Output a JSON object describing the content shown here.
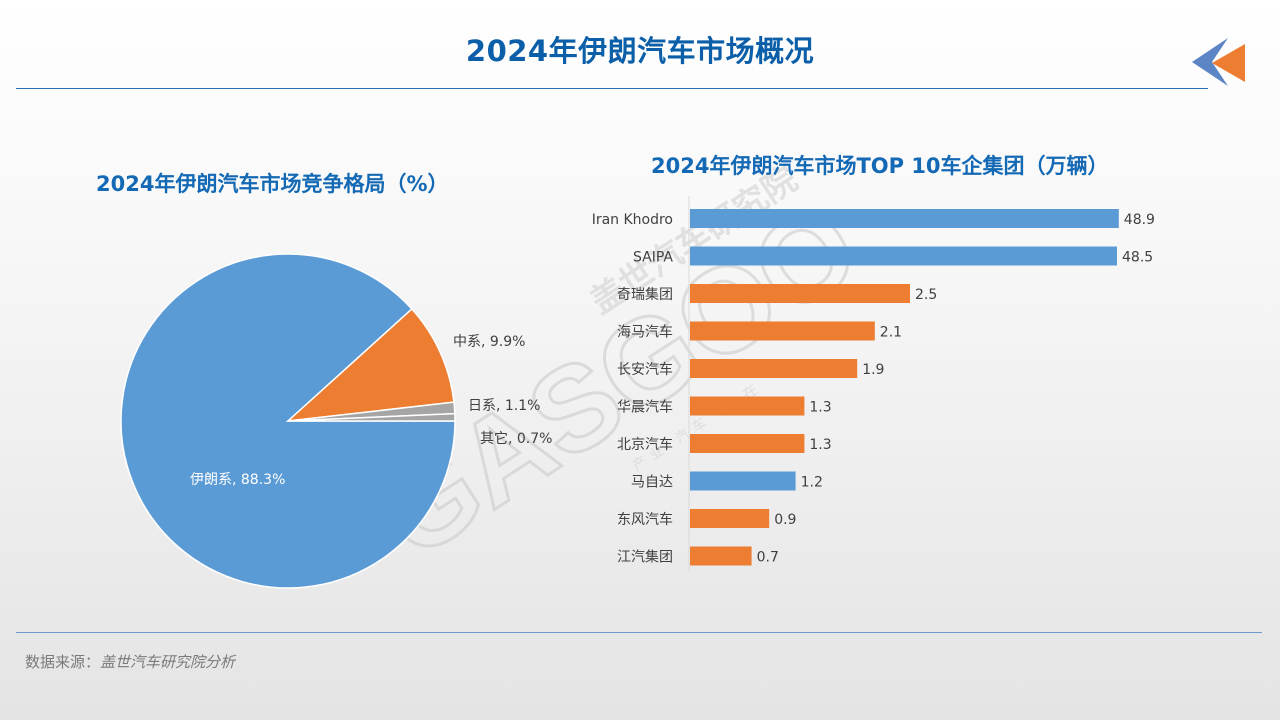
{
  "page": {
    "title": "2024年伊朗汽车市场概况",
    "source_label": "数据来源：",
    "source_value": "盖世汽车研究院分析"
  },
  "colors": {
    "title_blue": "#0b5ea8",
    "blue": "#5b9bd5",
    "orange": "#ed7d31",
    "gray": "#a5a5a5",
    "watermark": "#c8c8c8"
  },
  "watermark": {
    "brand": "盖世汽车研究院",
    "logo": "GASGOO",
    "slogan": "产业 汽车 量 在"
  },
  "chart_data": [
    {
      "type": "pie",
      "title": "2024年伊朗汽车市场竞争格局（%）",
      "slices": [
        {
          "name": "伊朗系",
          "value": 88.3,
          "label": "伊朗系, 88.3%",
          "color": "#5b9bd5"
        },
        {
          "name": "中系",
          "value": 9.9,
          "label": "中系, 9.9%",
          "color": "#ed7d31"
        },
        {
          "name": "日系",
          "value": 1.1,
          "label": "日系, 1.1%",
          "color": "#a5a5a5"
        },
        {
          "name": "其它",
          "value": 0.7,
          "label": "其它, 0.7%",
          "color": "#a5a5a5"
        }
      ]
    },
    {
      "type": "bar",
      "orientation": "horizontal",
      "title": "2024年伊朗汽车市场TOP 10车企集团（万辆）",
      "categories": [
        "Iran Khodro",
        "SAIPA",
        "奇瑞集团",
        "海马汽车",
        "长安汽车",
        "华晨汽车",
        "北京汽车",
        "马自达",
        "东风汽车",
        "江汽集团"
      ],
      "values": [
        48.9,
        48.5,
        2.5,
        2.1,
        1.9,
        1.3,
        1.3,
        1.2,
        0.9,
        0.7
      ],
      "value_labels": [
        "48.9",
        "48.5",
        "2.5",
        "2.1",
        "1.9",
        "1.3",
        "1.3",
        "1.2",
        "0.9",
        "0.7"
      ],
      "colors": [
        "#5b9bd5",
        "#5b9bd5",
        "#ed7d31",
        "#ed7d31",
        "#ed7d31",
        "#ed7d31",
        "#ed7d31",
        "#5b9bd5",
        "#ed7d31",
        "#ed7d31"
      ],
      "axis_break": true
    }
  ]
}
